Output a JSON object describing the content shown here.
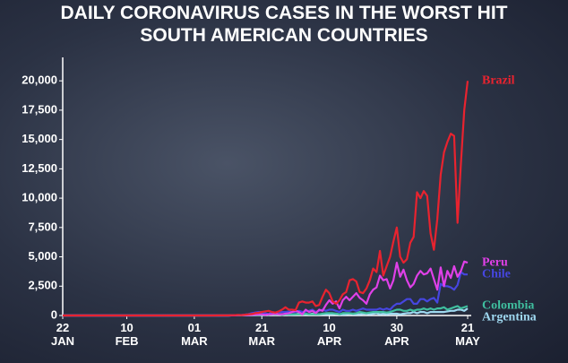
{
  "chart_data": {
    "type": "line",
    "title": "DAILY CORONAVIRUS CASES IN THE WORST HIT\nSOUTH AMERICAN COUNTRIES",
    "categories": [
      "22\nJAN",
      null,
      null,
      null,
      null,
      null,
      null,
      null,
      null,
      null,
      null,
      null,
      null,
      null,
      null,
      null,
      null,
      null,
      null,
      "10\nFEB",
      null,
      null,
      null,
      null,
      null,
      null,
      null,
      null,
      null,
      null,
      null,
      null,
      null,
      null,
      null,
      null,
      null,
      null,
      null,
      "01\nMAR",
      null,
      null,
      null,
      null,
      null,
      null,
      null,
      null,
      null,
      null,
      null,
      null,
      null,
      null,
      null,
      null,
      null,
      null,
      null,
      "21\nMAR",
      null,
      null,
      null,
      null,
      null,
      null,
      null,
      null,
      null,
      null,
      null,
      null,
      null,
      null,
      null,
      null,
      null,
      null,
      null,
      "10\nAPR",
      null,
      null,
      null,
      null,
      null,
      null,
      null,
      null,
      null,
      null,
      null,
      null,
      null,
      null,
      null,
      null,
      null,
      null,
      null,
      "30\nAPR",
      null,
      null,
      null,
      null,
      null,
      null,
      null,
      null,
      null,
      null,
      null,
      null,
      null,
      null,
      null,
      null,
      null,
      null,
      null,
      null,
      "21\nMAY"
    ],
    "series": [
      {
        "name": "Brazil",
        "color": "#e8232f",
        "values": [
          0,
          0,
          0,
          0,
          0,
          0,
          0,
          0,
          0,
          0,
          0,
          0,
          0,
          0,
          0,
          0,
          0,
          0,
          0,
          0,
          0,
          0,
          0,
          0,
          0,
          0,
          0,
          0,
          0,
          0,
          0,
          0,
          0,
          0,
          0,
          0,
          0,
          0,
          0,
          0,
          0,
          0,
          0,
          0,
          0,
          2,
          5,
          5,
          10,
          10,
          20,
          30,
          50,
          30,
          70,
          100,
          120,
          200,
          230,
          300,
          350,
          400,
          300,
          250,
          350,
          500,
          700,
          500,
          500,
          450,
          1100,
          1200,
          1100,
          1100,
          1200,
          800,
          900,
          1600,
          2200,
          1900,
          1200,
          1000,
          1300,
          1800,
          2000,
          3000,
          3100,
          2900,
          2000,
          1900,
          2300,
          3000,
          4000,
          3700,
          5500,
          3400,
          4200,
          5000,
          6300,
          7500,
          5000,
          4500,
          4800,
          6200,
          6700,
          10500,
          10000,
          10600,
          10200,
          7000,
          5600,
          8200,
          12000,
          13900,
          14800,
          15500,
          15300,
          7900,
          13000,
          17500,
          20000
        ]
      },
      {
        "name": "Peru",
        "color": "#e040e8",
        "values": [
          0,
          0,
          0,
          0,
          0,
          0,
          0,
          0,
          0,
          0,
          0,
          0,
          0,
          0,
          0,
          0,
          0,
          0,
          0,
          0,
          0,
          0,
          0,
          0,
          0,
          0,
          0,
          0,
          0,
          0,
          0,
          0,
          0,
          0,
          0,
          0,
          0,
          0,
          0,
          0,
          0,
          0,
          0,
          0,
          0,
          0,
          0,
          0,
          0,
          0,
          5,
          10,
          20,
          20,
          30,
          40,
          60,
          80,
          100,
          100,
          50,
          100,
          100,
          150,
          100,
          100,
          150,
          200,
          300,
          400,
          300,
          100,
          500,
          300,
          400,
          200,
          500,
          400,
          900,
          1300,
          1000,
          1200,
          600,
          1300,
          1600,
          1300,
          1600,
          1900,
          1500,
          1300,
          1000,
          1800,
          2200,
          2400,
          3400,
          3000,
          3100,
          2300,
          3000,
          4500,
          3300,
          3900,
          3000,
          2400,
          2700,
          3400,
          3800,
          3500,
          3600,
          4000,
          3100,
          2200,
          4100,
          2500,
          3800,
          3200,
          4200,
          3300,
          3800,
          4600,
          4500
        ]
      },
      {
        "name": "Chile",
        "color": "#4646e0",
        "values": [
          0,
          0,
          0,
          0,
          0,
          0,
          0,
          0,
          0,
          0,
          0,
          0,
          0,
          0,
          0,
          0,
          0,
          0,
          0,
          0,
          0,
          0,
          0,
          0,
          0,
          0,
          0,
          0,
          0,
          0,
          0,
          0,
          0,
          0,
          0,
          0,
          0,
          0,
          0,
          0,
          0,
          0,
          0,
          0,
          0,
          0,
          0,
          0,
          0,
          0,
          10,
          20,
          40,
          50,
          80,
          120,
          200,
          250,
          300,
          300,
          200,
          100,
          300,
          250,
          300,
          300,
          300,
          350,
          300,
          300,
          400,
          300,
          350,
          400,
          500,
          300,
          400,
          500,
          400,
          500,
          500,
          400,
          300,
          500,
          400,
          400,
          500,
          400,
          500,
          600,
          500,
          500,
          500,
          500,
          600,
          500,
          600,
          500,
          800,
          1000,
          1000,
          1200,
          1400,
          1400,
          1000,
          1000,
          1400,
          1400,
          1200,
          1400,
          1500,
          1100,
          2700,
          2500,
          2500,
          2400,
          2200,
          2600,
          3700,
          3500,
          3500
        ]
      },
      {
        "name": "Colombia",
        "color": "#3fbf9f",
        "values": [
          0,
          0,
          0,
          0,
          0,
          0,
          0,
          0,
          0,
          0,
          0,
          0,
          0,
          0,
          0,
          0,
          0,
          0,
          0,
          0,
          0,
          0,
          0,
          0,
          0,
          0,
          0,
          0,
          0,
          0,
          0,
          0,
          0,
          0,
          0,
          0,
          0,
          0,
          0,
          0,
          0,
          0,
          0,
          0,
          0,
          0,
          0,
          0,
          0,
          0,
          5,
          10,
          10,
          20,
          30,
          40,
          50,
          50,
          60,
          80,
          100,
          60,
          100,
          100,
          100,
          50,
          100,
          100,
          100,
          100,
          100,
          100,
          150,
          100,
          100,
          100,
          100,
          150,
          200,
          200,
          200,
          150,
          100,
          200,
          200,
          200,
          150,
          200,
          300,
          250,
          200,
          250,
          300,
          300,
          300,
          300,
          250,
          300,
          400,
          500,
          500,
          400,
          400,
          500,
          400,
          500,
          500,
          600,
          500,
          600,
          500,
          600,
          600,
          700,
          500,
          600,
          700,
          800,
          600,
          700,
          800
        ]
      },
      {
        "name": "Argentina",
        "color": "#9fd8f0",
        "values": [
          0,
          0,
          0,
          0,
          0,
          0,
          0,
          0,
          0,
          0,
          0,
          0,
          0,
          0,
          0,
          0,
          0,
          0,
          0,
          0,
          0,
          0,
          0,
          0,
          0,
          0,
          0,
          0,
          0,
          0,
          0,
          0,
          0,
          0,
          0,
          0,
          0,
          0,
          0,
          0,
          0,
          0,
          0,
          0,
          0,
          0,
          0,
          0,
          0,
          0,
          5,
          10,
          5,
          10,
          10,
          20,
          20,
          30,
          50,
          30,
          70,
          80,
          100,
          80,
          100,
          100,
          100,
          60,
          80,
          100,
          150,
          100,
          100,
          100,
          150,
          100,
          100,
          100,
          100,
          100,
          100,
          150,
          100,
          80,
          100,
          150,
          100,
          100,
          100,
          150,
          150,
          100,
          150,
          200,
          100,
          150,
          100,
          150,
          150,
          150,
          100,
          150,
          200,
          200,
          300,
          200,
          300,
          300,
          200,
          300,
          300,
          300,
          300,
          300,
          350,
          400,
          400,
          500,
          500,
          400,
          600
        ]
      }
    ],
    "ylim": [
      0,
      22000
    ],
    "yticks": [
      0,
      {
        "value": 2500,
        "label": "2,500"
      },
      {
        "value": 5000,
        "label": "5,000"
      },
      {
        "value": 7500,
        "label": "7,500"
      },
      {
        "value": 10000,
        "label": "10,000"
      },
      {
        "value": 12500,
        "label": "12,500"
      },
      {
        "value": 15000,
        "label": "15,000"
      },
      {
        "value": 17500,
        "label": "17,500"
      },
      {
        "value": 20000,
        "label": "20,000"
      }
    ]
  }
}
